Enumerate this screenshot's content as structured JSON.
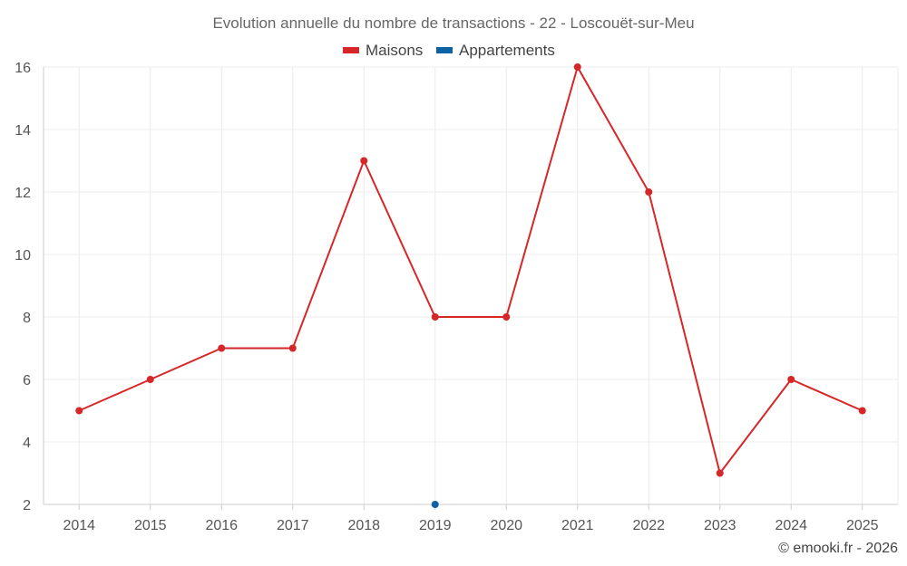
{
  "chart_data": {
    "type": "line",
    "title": "Evolution annuelle du nombre de transactions - 22 - Loscouët-sur-Meu",
    "categories": [
      "2014",
      "2015",
      "2016",
      "2017",
      "2018",
      "2019",
      "2020",
      "2021",
      "2022",
      "2023",
      "2024",
      "2025"
    ],
    "series": [
      {
        "name": "Maisons",
        "color": "#d62728",
        "values": [
          5,
          6,
          7,
          7,
          13,
          8,
          8,
          16,
          12,
          3,
          6,
          5
        ]
      },
      {
        "name": "Appartements",
        "color": "#0b62a4",
        "values": [
          null,
          null,
          null,
          null,
          null,
          2,
          null,
          null,
          null,
          null,
          null,
          null
        ]
      }
    ],
    "xlabel": "",
    "ylabel": "",
    "ylim": [
      2,
      16
    ],
    "yticks": [
      2,
      4,
      6,
      8,
      10,
      12,
      14,
      16
    ],
    "grid": true,
    "legend_position": "top-center"
  },
  "credit": "© emooki.fr - 2026"
}
